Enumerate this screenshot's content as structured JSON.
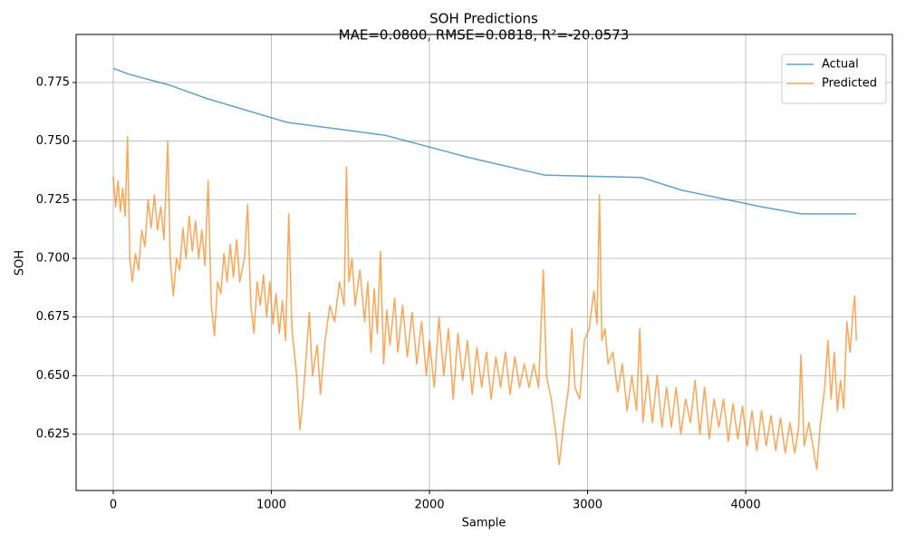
{
  "chart_data": {
    "type": "line",
    "title": "SOH Predictions",
    "subtitle": "MAE=0.0800, RMSE=0.0818, R²=-20.0573",
    "xlabel": "Sample",
    "ylabel": "SOH",
    "xlim": [
      -235,
      4928
    ],
    "ylim": [
      0.601,
      0.7955
    ],
    "xticks": [
      0,
      1000,
      2000,
      3000,
      4000
    ],
    "yticks": [
      0.625,
      {
        "value": 0.65,
        "label": "0.650"
      },
      0.675,
      {
        "value": 0.7,
        "label": "0.700"
      },
      0.725,
      {
        "value": 0.75,
        "label": "0.750"
      },
      0.775
    ],
    "grid": true,
    "legend": "upper right",
    "series": [
      {
        "name": "Actual",
        "color": "#1f77b4",
        "x": [
          0,
          100,
          350,
          600,
          1100,
          1720,
          2250,
          2730,
          3340,
          3600,
          4100,
          4350,
          4700
        ],
        "values": [
          0.781,
          0.7785,
          0.774,
          0.768,
          0.758,
          0.7525,
          0.743,
          0.7355,
          0.7345,
          0.729,
          0.722,
          0.719,
          0.719
        ]
      },
      {
        "name": "Predicted",
        "color": "#ff7f0e",
        "x": [
          0,
          15,
          30,
          45,
          60,
          75,
          90,
          105,
          120,
          140,
          160,
          180,
          200,
          220,
          240,
          260,
          280,
          300,
          320,
          345,
          360,
          380,
          400,
          420,
          440,
          460,
          480,
          500,
          520,
          540,
          560,
          580,
          600,
          620,
          640,
          660,
          680,
          700,
          720,
          740,
          760,
          780,
          800,
          830,
          850,
          870,
          890,
          910,
          930,
          950,
          970,
          990,
          1010,
          1030,
          1050,
          1070,
          1090,
          1110,
          1130,
          1160,
          1180,
          1200,
          1240,
          1260,
          1290,
          1310,
          1340,
          1370,
          1400,
          1430,
          1460,
          1475,
          1490,
          1510,
          1530,
          1560,
          1590,
          1610,
          1630,
          1650,
          1670,
          1690,
          1710,
          1730,
          1750,
          1780,
          1800,
          1830,
          1860,
          1890,
          1920,
          1950,
          1980,
          2000,
          2030,
          2060,
          2090,
          2120,
          2150,
          2180,
          2210,
          2240,
          2270,
          2300,
          2330,
          2360,
          2390,
          2420,
          2450,
          2480,
          2510,
          2540,
          2570,
          2600,
          2630,
          2660,
          2690,
          2720,
          2740,
          2770,
          2800,
          2820,
          2850,
          2880,
          2900,
          2920,
          2950,
          2980,
          3010,
          3040,
          3060,
          3075,
          3090,
          3110,
          3130,
          3160,
          3190,
          3220,
          3250,
          3280,
          3310,
          3330,
          3350,
          3380,
          3410,
          3440,
          3470,
          3500,
          3530,
          3560,
          3590,
          3620,
          3650,
          3680,
          3710,
          3740,
          3770,
          3800,
          3830,
          3860,
          3890,
          3920,
          3950,
          3980,
          4010,
          4040,
          4070,
          4100,
          4130,
          4160,
          4190,
          4220,
          4250,
          4280,
          4310,
          4335,
          4350,
          4370,
          4400,
          4430,
          4450,
          4470,
          4500,
          4520,
          4540,
          4560,
          4580,
          4600,
          4620,
          4640,
          4660,
          4680,
          4690,
          4700
        ],
        "values": [
          0.735,
          0.722,
          0.733,
          0.72,
          0.73,
          0.718,
          0.752,
          0.7,
          0.69,
          0.702,
          0.695,
          0.712,
          0.705,
          0.725,
          0.713,
          0.727,
          0.712,
          0.722,
          0.708,
          0.75,
          0.7,
          0.684,
          0.7,
          0.695,
          0.713,
          0.7,
          0.718,
          0.703,
          0.716,
          0.7,
          0.712,
          0.697,
          0.733,
          0.68,
          0.667,
          0.69,
          0.685,
          0.702,
          0.69,
          0.706,
          0.692,
          0.708,
          0.69,
          0.7,
          0.723,
          0.68,
          0.668,
          0.69,
          0.68,
          0.693,
          0.675,
          0.69,
          0.672,
          0.685,
          0.668,
          0.682,
          0.665,
          0.719,
          0.67,
          0.65,
          0.627,
          0.64,
          0.677,
          0.65,
          0.663,
          0.642,
          0.665,
          0.68,
          0.673,
          0.69,
          0.68,
          0.739,
          0.69,
          0.7,
          0.68,
          0.695,
          0.673,
          0.69,
          0.66,
          0.687,
          0.668,
          0.703,
          0.655,
          0.678,
          0.663,
          0.683,
          0.66,
          0.68,
          0.658,
          0.677,
          0.655,
          0.673,
          0.65,
          0.665,
          0.645,
          0.675,
          0.65,
          0.67,
          0.64,
          0.668,
          0.648,
          0.665,
          0.642,
          0.662,
          0.645,
          0.66,
          0.64,
          0.658,
          0.645,
          0.66,
          0.642,
          0.658,
          0.645,
          0.655,
          0.645,
          0.655,
          0.645,
          0.695,
          0.65,
          0.64,
          0.625,
          0.612,
          0.63,
          0.645,
          0.67,
          0.645,
          0.64,
          0.665,
          0.67,
          0.686,
          0.672,
          0.727,
          0.665,
          0.67,
          0.655,
          0.66,
          0.643,
          0.655,
          0.635,
          0.65,
          0.635,
          0.67,
          0.63,
          0.65,
          0.63,
          0.65,
          0.628,
          0.645,
          0.628,
          0.645,
          0.625,
          0.64,
          0.63,
          0.648,
          0.625,
          0.645,
          0.623,
          0.64,
          0.628,
          0.64,
          0.622,
          0.638,
          0.623,
          0.637,
          0.62,
          0.635,
          0.618,
          0.635,
          0.62,
          0.633,
          0.618,
          0.632,
          0.617,
          0.63,
          0.617,
          0.628,
          0.659,
          0.62,
          0.63,
          0.618,
          0.61,
          0.628,
          0.645,
          0.665,
          0.64,
          0.66,
          0.635,
          0.648,
          0.636,
          0.673,
          0.66,
          0.678,
          0.684,
          0.665
        ]
      }
    ]
  }
}
